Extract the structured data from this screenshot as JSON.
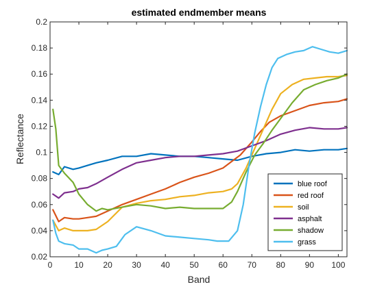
{
  "chart_data": {
    "type": "line",
    "title": "estimated endmember means",
    "xlabel": "Band",
    "ylabel": "Reflectance",
    "xlim": [
      0,
      103
    ],
    "ylim": [
      0.02,
      0.2
    ],
    "xticks": [
      "0",
      "10",
      "20",
      "30",
      "40",
      "50",
      "60",
      "70",
      "80",
      "90",
      "100"
    ],
    "yticks": [
      "0.02",
      "0.04",
      "0.06",
      "0.08",
      "0.1",
      "0.12",
      "0.14",
      "0.16",
      "0.18",
      "0.2"
    ],
    "grid": false,
    "legend_position": "bottom-right",
    "series": [
      {
        "name": "blue roof",
        "color": "#0072BD",
        "x": [
          1,
          3,
          5,
          8,
          10,
          13,
          16,
          20,
          25,
          30,
          35,
          40,
          45,
          50,
          55,
          60,
          65,
          70,
          75,
          80,
          85,
          90,
          95,
          100,
          103
        ],
        "y": [
          0.085,
          0.083,
          0.089,
          0.087,
          0.088,
          0.09,
          0.092,
          0.094,
          0.097,
          0.097,
          0.099,
          0.098,
          0.097,
          0.097,
          0.096,
          0.095,
          0.094,
          0.097,
          0.099,
          0.1,
          0.102,
          0.101,
          0.102,
          0.102,
          0.103
        ]
      },
      {
        "name": "red roof",
        "color": "#D95319",
        "x": [
          1,
          3,
          5,
          8,
          10,
          13,
          16,
          20,
          25,
          30,
          35,
          40,
          45,
          50,
          55,
          60,
          63,
          66,
          70,
          73,
          76,
          80,
          85,
          90,
          95,
          100,
          103
        ],
        "y": [
          0.056,
          0.047,
          0.05,
          0.049,
          0.049,
          0.05,
          0.051,
          0.055,
          0.06,
          0.064,
          0.068,
          0.072,
          0.077,
          0.081,
          0.084,
          0.088,
          0.093,
          0.098,
          0.108,
          0.116,
          0.123,
          0.128,
          0.132,
          0.136,
          0.138,
          0.139,
          0.141
        ]
      },
      {
        "name": "soil",
        "color": "#EDB120",
        "x": [
          1,
          3,
          5,
          8,
          10,
          13,
          16,
          20,
          25,
          30,
          35,
          40,
          45,
          50,
          55,
          60,
          63,
          65,
          68,
          71,
          74,
          77,
          80,
          84,
          88,
          92,
          96,
          100,
          103
        ],
        "y": [
          0.048,
          0.04,
          0.042,
          0.04,
          0.04,
          0.04,
          0.041,
          0.047,
          0.058,
          0.061,
          0.063,
          0.064,
          0.066,
          0.067,
          0.069,
          0.07,
          0.072,
          0.076,
          0.088,
          0.103,
          0.118,
          0.133,
          0.145,
          0.152,
          0.156,
          0.157,
          0.158,
          0.158,
          0.159
        ]
      },
      {
        "name": "asphalt",
        "color": "#7E2F8E",
        "x": [
          1,
          3,
          5,
          8,
          10,
          13,
          16,
          20,
          25,
          30,
          35,
          40,
          45,
          50,
          55,
          60,
          65,
          70,
          75,
          80,
          85,
          90,
          95,
          100,
          103
        ],
        "y": [
          0.068,
          0.065,
          0.069,
          0.07,
          0.072,
          0.073,
          0.076,
          0.081,
          0.087,
          0.092,
          0.094,
          0.096,
          0.097,
          0.097,
          0.098,
          0.099,
          0.101,
          0.105,
          0.109,
          0.114,
          0.117,
          0.119,
          0.118,
          0.118,
          0.119
        ]
      },
      {
        "name": "shadow",
        "color": "#77AC30",
        "x": [
          1,
          2,
          3,
          5,
          8,
          10,
          13,
          16,
          18,
          20,
          25,
          30,
          35,
          40,
          45,
          50,
          55,
          60,
          63,
          65,
          68,
          71,
          74,
          77,
          80,
          84,
          88,
          92,
          96,
          100,
          103
        ],
        "y": [
          0.133,
          0.118,
          0.09,
          0.084,
          0.077,
          0.068,
          0.06,
          0.055,
          0.057,
          0.056,
          0.058,
          0.06,
          0.059,
          0.057,
          0.058,
          0.057,
          0.057,
          0.057,
          0.062,
          0.07,
          0.085,
          0.098,
          0.107,
          0.117,
          0.126,
          0.138,
          0.148,
          0.152,
          0.155,
          0.157,
          0.16
        ]
      },
      {
        "name": "grass",
        "color": "#4DBEEE",
        "x": [
          1,
          2,
          3,
          5,
          8,
          10,
          13,
          16,
          18,
          20,
          23,
          26,
          30,
          35,
          40,
          45,
          50,
          55,
          58,
          62,
          65,
          67,
          69,
          71,
          73,
          75,
          77,
          79,
          82,
          85,
          88,
          91,
          94,
          97,
          100,
          103
        ],
        "y": [
          0.048,
          0.038,
          0.032,
          0.03,
          0.029,
          0.026,
          0.026,
          0.023,
          0.025,
          0.026,
          0.028,
          0.037,
          0.043,
          0.04,
          0.036,
          0.035,
          0.034,
          0.033,
          0.032,
          0.032,
          0.04,
          0.06,
          0.09,
          0.115,
          0.135,
          0.152,
          0.165,
          0.172,
          0.175,
          0.177,
          0.178,
          0.181,
          0.179,
          0.177,
          0.176,
          0.178
        ]
      }
    ]
  }
}
